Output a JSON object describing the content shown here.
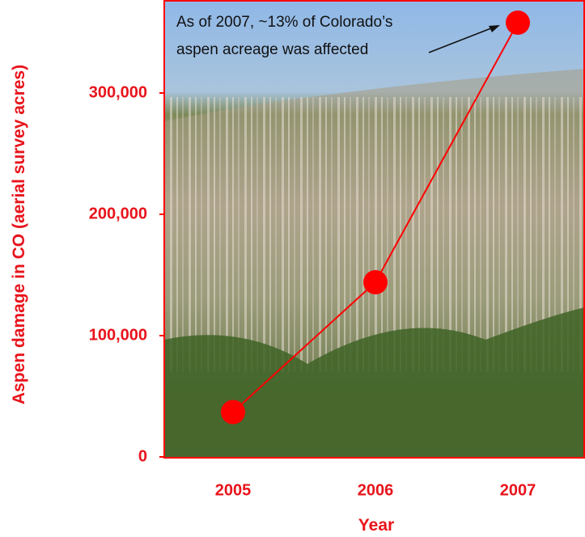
{
  "chart_data": {
    "type": "line",
    "categories": [
      "2005",
      "2006",
      "2007"
    ],
    "series": [
      {
        "name": "Aspen damage",
        "color": "#ff0000",
        "values": [
          37000,
          144000,
          358000
        ]
      }
    ],
    "ylim": [
      0,
      375000
    ],
    "yticks": [
      0,
      {
        "value": 100000,
        "label": "100,000"
      },
      {
        "value": 200000,
        "label": "200,000"
      },
      {
        "value": 300000,
        "label": "300,000"
      }
    ],
    "ylabel": "Aspen damage in CO (aerial survey acres)",
    "xlabel": "Year",
    "annotation": [
      "As of 2007, ~13% of Colorado’s",
      "aspen acreage was affected"
    ]
  }
}
